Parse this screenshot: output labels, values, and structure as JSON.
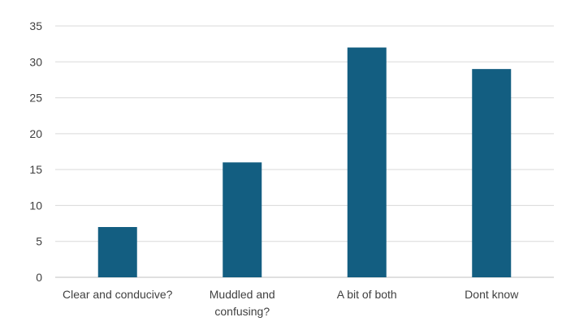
{
  "chart_data": {
    "type": "bar",
    "title": "",
    "xlabel": "",
    "ylabel": "",
    "categories": [
      [
        "Clear and conducive?"
      ],
      [
        "Muddled and",
        "confusing?"
      ],
      [
        "A bit of both"
      ],
      [
        "Dont know"
      ]
    ],
    "values": [
      7,
      16,
      32,
      29
    ],
    "ylim": [
      0,
      35
    ],
    "yticks": [
      0,
      5,
      10,
      15,
      20,
      25,
      30,
      35
    ],
    "grid": true,
    "legend": "none",
    "bar_color": "#135e81"
  }
}
